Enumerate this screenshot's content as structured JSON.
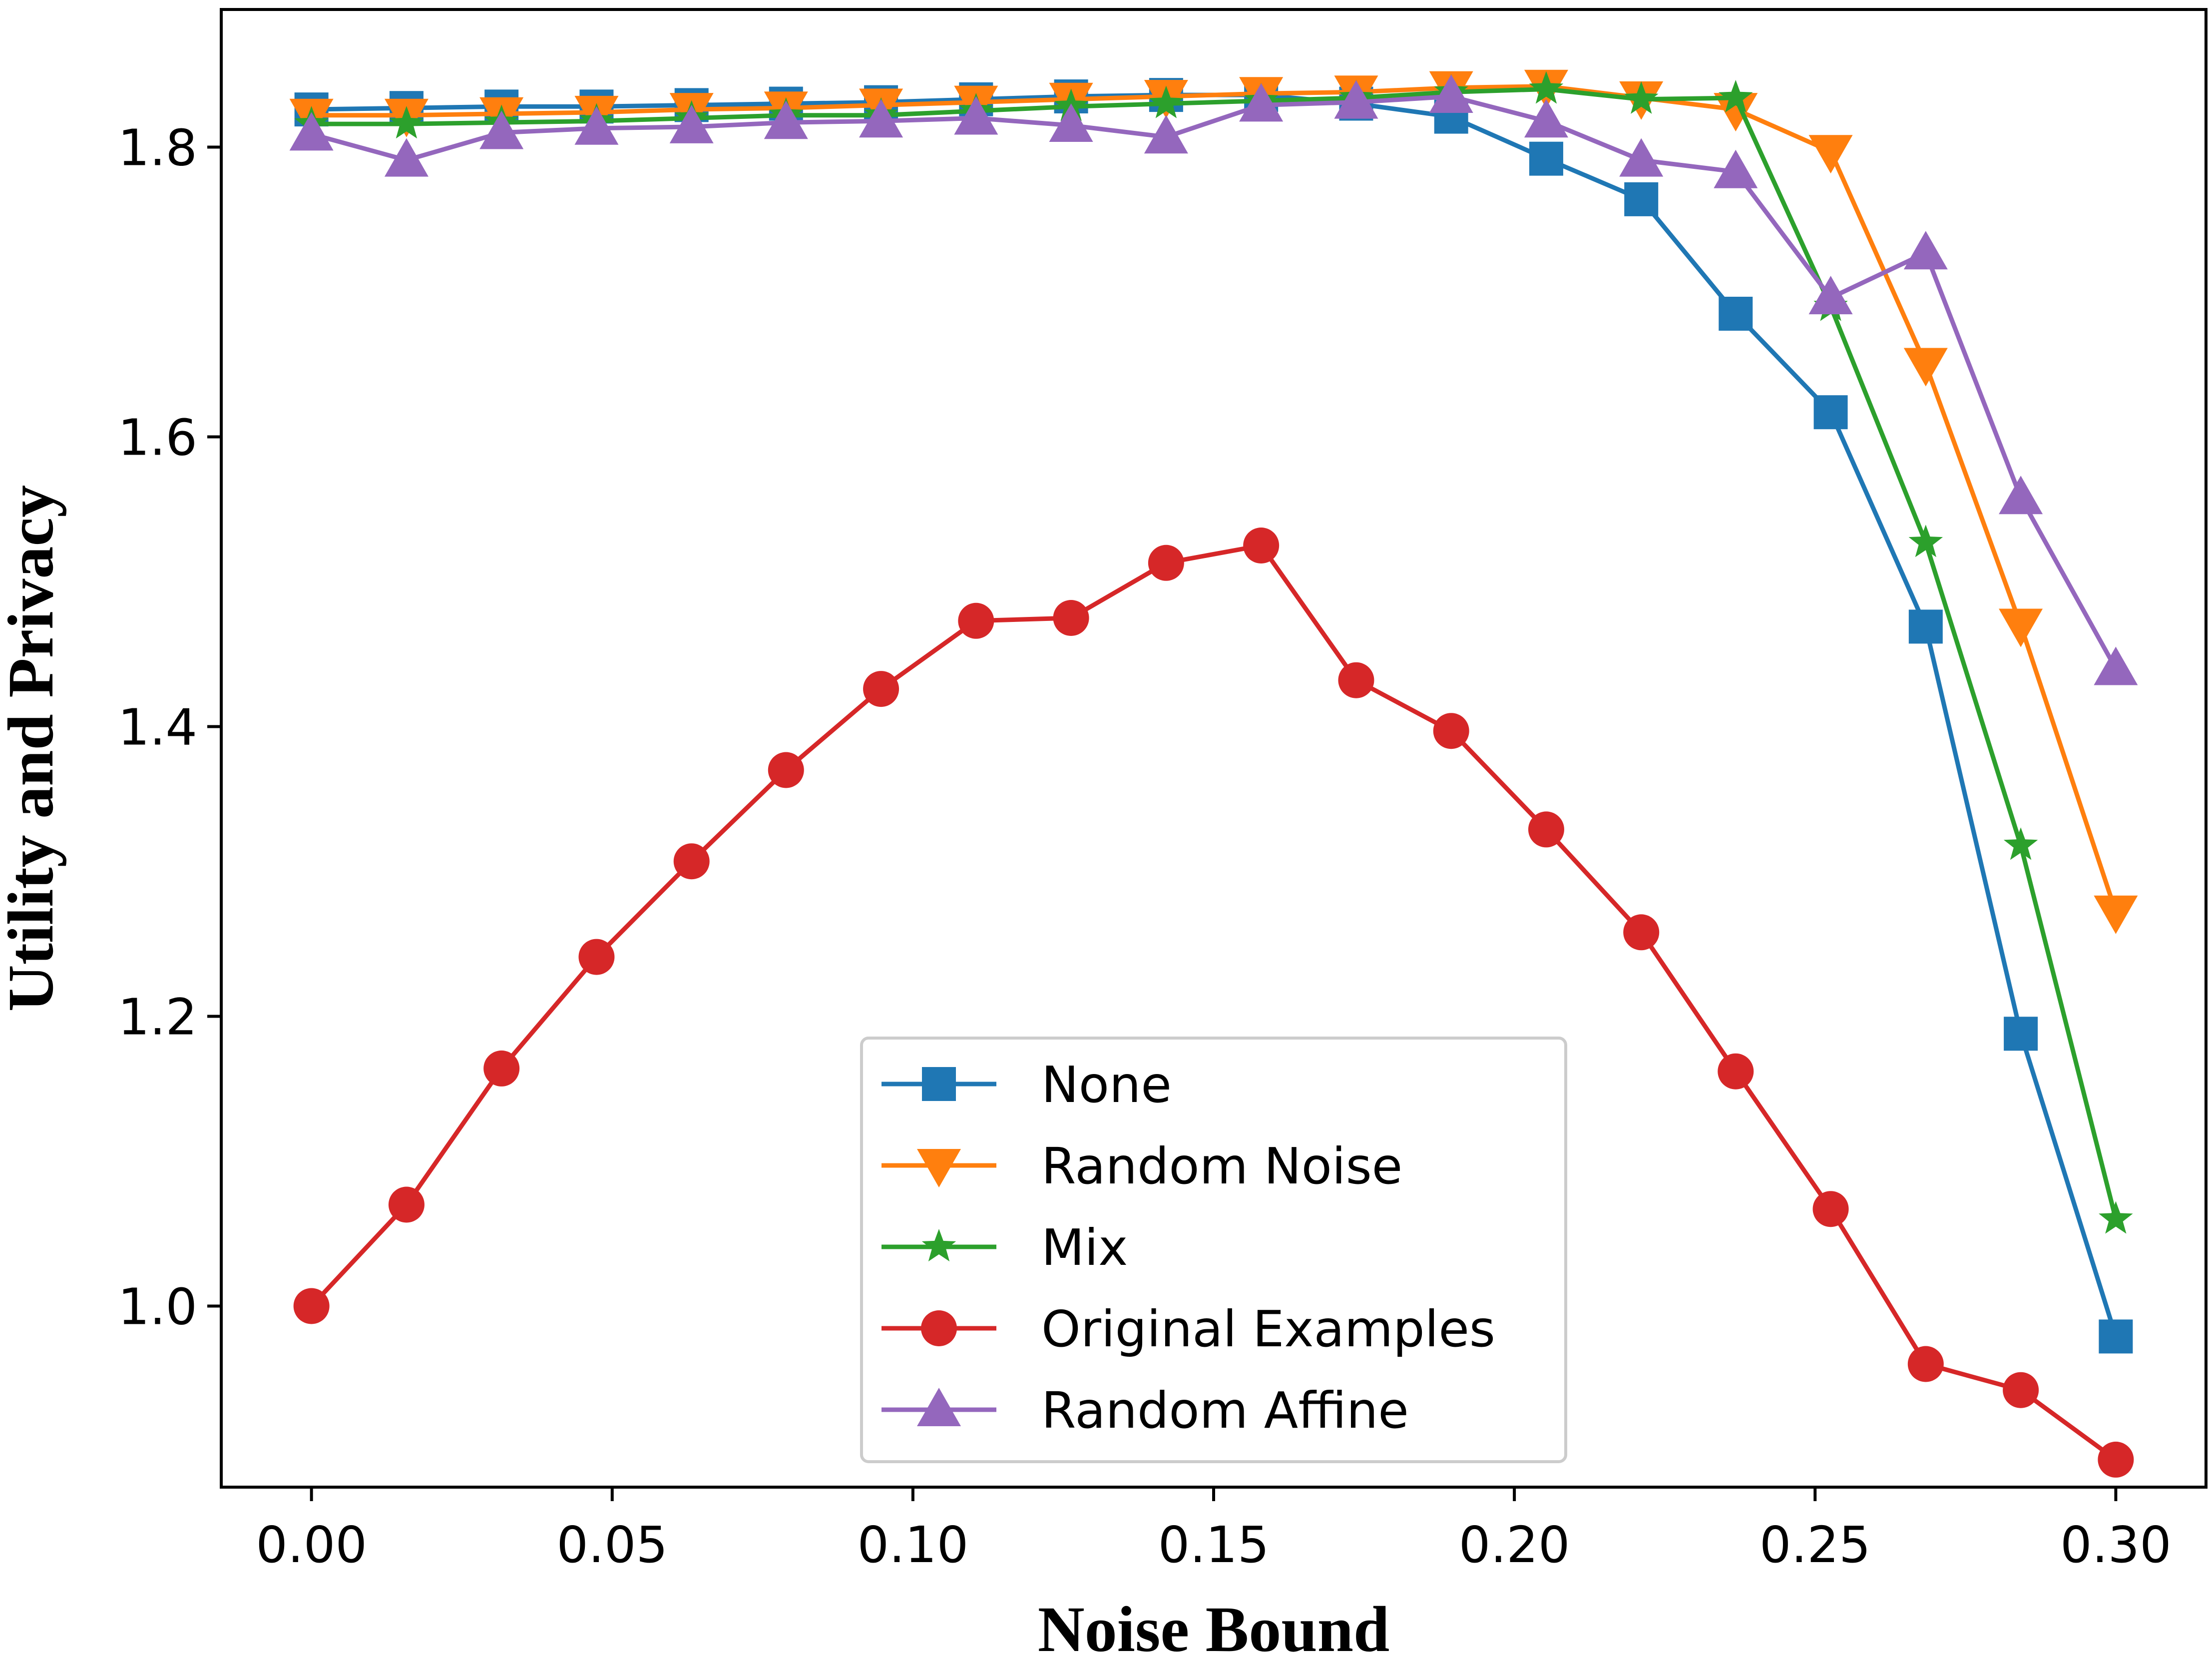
{
  "chart_data": {
    "type": "line",
    "title": "",
    "xlabel": "Noise Bound",
    "ylabel": "Utility and Privacy",
    "xlim": [
      -0.015,
      0.315
    ],
    "ylim": [
      0.875,
      1.895
    ],
    "xticks": [
      0.0,
      0.05,
      0.1,
      0.15,
      0.2,
      0.25,
      0.3
    ],
    "xtick_labels": [
      "0.00",
      "0.05",
      "0.10",
      "0.15",
      "0.20",
      "0.25",
      "0.30"
    ],
    "yticks": [
      1.0,
      1.2,
      1.4,
      1.6,
      1.8
    ],
    "ytick_labels": [
      "1.0",
      "1.2",
      "1.4",
      "1.6",
      "1.8"
    ],
    "grid": false,
    "legend_position": "lower-center",
    "x": [
      0.0,
      0.0158,
      0.0316,
      0.0474,
      0.0632,
      0.0789,
      0.0947,
      0.1105,
      0.1263,
      0.1421,
      0.1579,
      0.1737,
      0.1895,
      0.2053,
      0.2211,
      0.2368,
      0.2526,
      0.2684,
      0.2842,
      0.3
    ],
    "series": [
      {
        "name": "None",
        "color": "#1f77b4",
        "marker": "square",
        "values": [
          1.826,
          1.827,
          1.828,
          1.828,
          1.829,
          1.83,
          1.831,
          1.833,
          1.835,
          1.836,
          1.836,
          1.83,
          1.821,
          1.792,
          1.764,
          1.685,
          1.617,
          1.469,
          1.188,
          0.979
        ]
      },
      {
        "name": "Random Noise",
        "color": "#ff7f0e",
        "marker": "triangle-down",
        "values": [
          1.822,
          1.822,
          1.823,
          1.824,
          1.826,
          1.827,
          1.829,
          1.831,
          1.833,
          1.835,
          1.837,
          1.838,
          1.841,
          1.842,
          1.834,
          1.826,
          1.797,
          1.65,
          1.47,
          1.272
        ]
      },
      {
        "name": "Mix",
        "color": "#2ca02c",
        "marker": "star",
        "values": [
          1.816,
          1.816,
          1.817,
          1.818,
          1.82,
          1.822,
          1.822,
          1.825,
          1.828,
          1.83,
          1.832,
          1.834,
          1.838,
          1.84,
          1.833,
          1.834,
          1.69,
          1.527,
          1.318,
          1.06
        ]
      },
      {
        "name": "Original Examples",
        "color": "#d62728",
        "marker": "circle",
        "values": [
          1.0,
          1.07,
          1.164,
          1.241,
          1.307,
          1.37,
          1.426,
          1.473,
          1.475,
          1.513,
          1.525,
          1.432,
          1.397,
          1.329,
          1.258,
          1.162,
          1.067,
          0.96,
          0.942,
          0.894
        ]
      },
      {
        "name": "Random Affine",
        "color": "#9467bd",
        "marker": "triangle-up",
        "values": [
          1.809,
          1.791,
          1.81,
          1.813,
          1.814,
          1.817,
          1.818,
          1.82,
          1.815,
          1.807,
          1.829,
          1.831,
          1.835,
          1.818,
          1.791,
          1.783,
          1.696,
          1.727,
          1.558,
          1.44
        ]
      }
    ]
  }
}
